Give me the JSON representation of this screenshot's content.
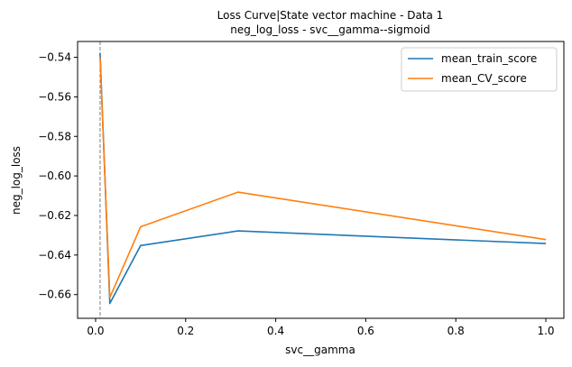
{
  "chart_data": {
    "type": "line",
    "title": "Loss Curve|State vector machine - Data 1",
    "subtitle": "neg_log_loss - svc__gamma--sigmoid",
    "xlabel": "svc__gamma",
    "ylabel": "neg_log_loss",
    "xlim": [
      -0.04,
      1.04
    ],
    "ylim": [
      -0.672,
      -0.532
    ],
    "xticks": [
      0.0,
      0.2,
      0.4,
      0.6,
      0.8,
      1.0
    ],
    "xtick_labels": [
      "0.0",
      "0.2",
      "0.4",
      "0.6",
      "0.8",
      "1.0"
    ],
    "yticks": [
      -0.54,
      -0.56,
      -0.58,
      -0.6,
      -0.62,
      -0.64,
      -0.66
    ],
    "ytick_labels": [
      "−0.54",
      "−0.56",
      "−0.58",
      "−0.60",
      "−0.62",
      "−0.64",
      "−0.66"
    ],
    "grid": false,
    "legend_position": "top-right",
    "vline": {
      "x": 0.01,
      "style": "dashed",
      "color": "#808080"
    },
    "x": [
      0.01,
      0.0316,
      0.1,
      0.316,
      1.0
    ],
    "series": [
      {
        "name": "mean_train_score",
        "color": "#1f77b4",
        "values": [
          -0.538,
          -0.6645,
          -0.6352,
          -0.6278,
          -0.6342
        ]
      },
      {
        "name": "mean_CV_score",
        "color": "#ff7f0e",
        "values": [
          -0.54,
          -0.6615,
          -0.6257,
          -0.6082,
          -0.6322
        ]
      }
    ]
  }
}
